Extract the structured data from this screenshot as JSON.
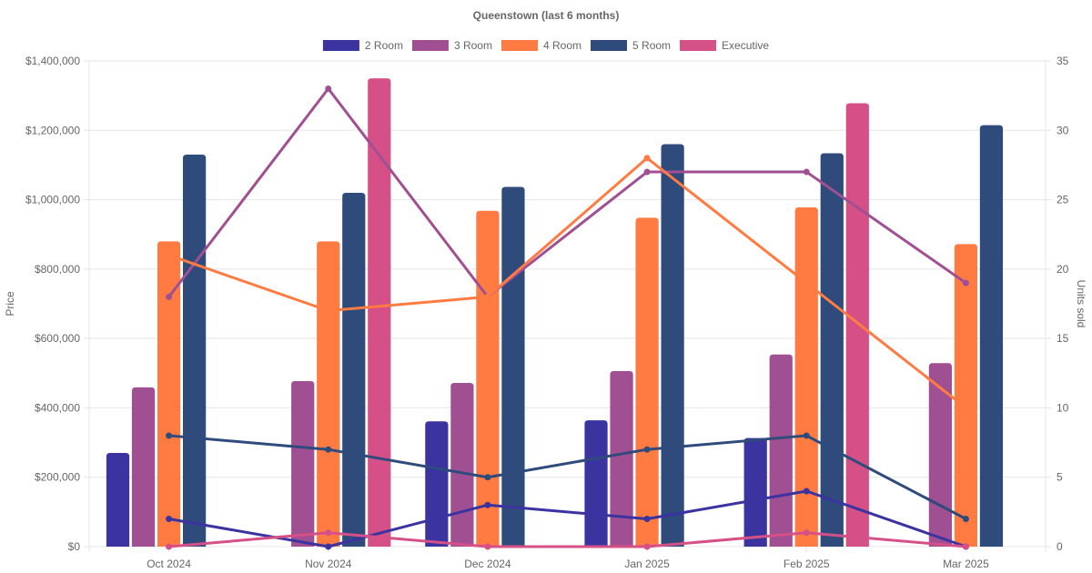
{
  "chart_data": {
    "type": "bar",
    "title": "Queenstown (last 6 months)",
    "xlabel": "",
    "ylabel": "Price",
    "y2label": "Units sold",
    "categories": [
      "Oct 2024",
      "Nov 2024",
      "Dec 2024",
      "Jan 2025",
      "Feb 2025",
      "Mar 2025"
    ],
    "ylim": [
      0,
      1400000
    ],
    "y_ticks": [
      0,
      200000,
      400000,
      600000,
      800000,
      1000000,
      1200000,
      1400000
    ],
    "y_tick_labels": [
      "$0",
      "$200,000",
      "$400,000",
      "$600,000",
      "$800,000",
      "$1,000,000",
      "$1,200,000",
      "$1,400,000"
    ],
    "y2lim": [
      0,
      35
    ],
    "y2_ticks": [
      0,
      5,
      10,
      15,
      20,
      25,
      30,
      35
    ],
    "y2_tick_labels": [
      "0",
      "5",
      "10",
      "15",
      "20",
      "25",
      "30",
      "35"
    ],
    "grid": true,
    "legend_position": "top",
    "series": [
      {
        "name": "2 Room",
        "color": "#3a33a0",
        "price": [
          270000,
          null,
          361000,
          364000,
          313000,
          null
        ],
        "units": [
          2,
          0,
          3,
          2,
          4,
          0
        ]
      },
      {
        "name": "3 Room",
        "color": "#a04f92",
        "price": [
          459000,
          477000,
          472000,
          506000,
          554000,
          529000
        ],
        "units": [
          18,
          33,
          18,
          27,
          27,
          19
        ]
      },
      {
        "name": "4 Room",
        "color": "#ff7b42",
        "price": [
          880000,
          880000,
          968000,
          948000,
          978000,
          872000
        ],
        "units": [
          21,
          17,
          18,
          28,
          19,
          10
        ]
      },
      {
        "name": "5 Room",
        "color": "#2f4b7c",
        "price": [
          1130000,
          1020000,
          1037000,
          1160000,
          1134000,
          1215000
        ],
        "units": [
          8,
          7,
          5,
          7,
          8,
          2
        ]
      },
      {
        "name": "Executive",
        "color": "#d45087",
        "price": [
          null,
          1350000,
          null,
          null,
          1278000,
          null
        ],
        "units": [
          0,
          1,
          0,
          0,
          1,
          0
        ]
      }
    ]
  }
}
